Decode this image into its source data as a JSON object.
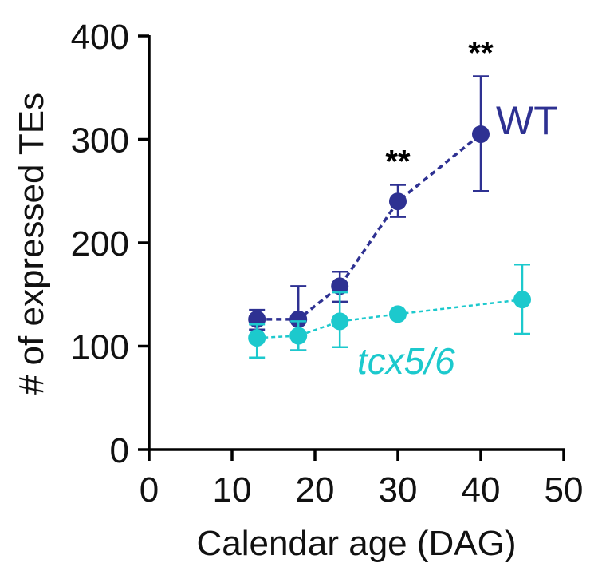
{
  "chart_data": {
    "type": "line",
    "xlabel": "Calendar age (DAG)",
    "ylabel": "# of expressed TEs",
    "xlim": [
      0,
      50
    ],
    "ylim": [
      0,
      400
    ],
    "xticks": [
      "0",
      "10",
      "20",
      "30",
      "40",
      "50"
    ],
    "yticks": [
      "0",
      "100",
      "200",
      "300",
      "400"
    ],
    "grid": false,
    "line_style": "dashed",
    "series": [
      {
        "name": "WT",
        "color": "#2e3192",
        "x": [
          13,
          18,
          23,
          30,
          40
        ],
        "y": [
          126,
          126,
          158,
          240,
          305
        ],
        "err_low": [
          116,
          96,
          143,
          225,
          250
        ],
        "err_high": [
          135,
          158,
          172,
          256,
          361
        ]
      },
      {
        "name": "tcx5/6",
        "color": "#1cc9cd",
        "x": [
          13,
          18,
          23,
          30,
          45
        ],
        "y": [
          108,
          110,
          124,
          131,
          145
        ],
        "err_low": [
          89,
          96,
          99,
          131,
          112
        ],
        "err_high": [
          121,
          124,
          152,
          131,
          179
        ]
      }
    ],
    "annotations": [
      {
        "text": "**",
        "x": 30
      },
      {
        "text": "**",
        "x": 40
      }
    ]
  }
}
